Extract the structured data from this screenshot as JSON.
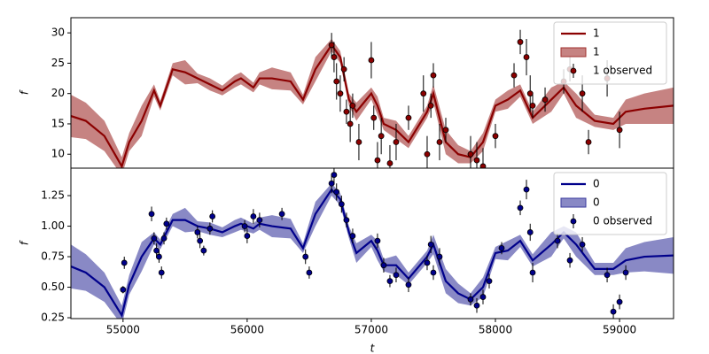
{
  "chart_data": [
    {
      "type": "line",
      "ylabel": "f",
      "legend": "upper right",
      "xlim": [
        54580,
        59435
      ],
      "ylim": [
        7.7,
        32.5
      ],
      "yticks": [
        10,
        15,
        20,
        25,
        30
      ],
      "x": [
        54580,
        54700,
        54850,
        54990,
        55050,
        55150,
        55250,
        55300,
        55400,
        55500,
        55600,
        55700,
        55800,
        55900,
        55950,
        56050,
        56100,
        56200,
        56350,
        56450,
        56550,
        56680,
        56750,
        56820,
        56880,
        57000,
        57050,
        57100,
        57200,
        57300,
        57450,
        57500,
        57600,
        57700,
        57800,
        57900,
        58000,
        58100,
        58200,
        58300,
        58450,
        58550,
        58650,
        58800,
        58950,
        59050,
        59200,
        59435
      ],
      "series": [
        {
          "name": "1",
          "color": "#8b0000",
          "values": [
            16.3,
            15.5,
            13,
            8,
            12,
            15.5,
            20.5,
            18,
            24,
            23.5,
            22.5,
            21.5,
            20.5,
            22,
            22.5,
            21,
            22.5,
            22.5,
            22,
            19,
            24,
            28,
            26,
            19,
            17,
            20,
            18,
            15,
            14,
            12,
            17,
            20,
            12,
            10,
            9.5,
            12,
            18,
            19,
            20.5,
            16,
            19,
            21,
            18,
            15.5,
            15,
            17,
            17.5,
            18
          ]
        }
      ],
      "band": {
        "name": "1",
        "color": "#a0312f",
        "errors": [
          3.5,
          3,
          2.5,
          1.5,
          1.5,
          2.5,
          1,
          0.8,
          1,
          2,
          0.8,
          1,
          0.8,
          1,
          1,
          0.8,
          1,
          1.8,
          1.5,
          0.8,
          2,
          1,
          1,
          1,
          1.5,
          1,
          1.5,
          1,
          1.5,
          1,
          1,
          1.5,
          2,
          1.5,
          1,
          1.5,
          1,
          1.5,
          1,
          1,
          2,
          1,
          2,
          1,
          1,
          2,
          2.5,
          3
        ]
      },
      "observed": {
        "name": "1 observed",
        "color": "#8b0000",
        "x": [
          56680,
          56700,
          56720,
          56750,
          56780,
          56800,
          56830,
          56850,
          56900,
          57000,
          57020,
          57050,
          57080,
          57150,
          57200,
          57300,
          57420,
          57450,
          57480,
          57500,
          57550,
          57600,
          57800,
          57850,
          57900,
          58000,
          58150,
          58200,
          58250,
          58280,
          58300,
          58400,
          58550,
          58600,
          58700,
          58750,
          58900,
          59000
        ],
        "values": [
          28,
          26,
          22,
          20,
          24,
          17,
          15,
          18,
          12,
          25.5,
          16,
          9,
          13,
          8.5,
          12,
          16,
          20,
          10,
          18,
          23,
          12,
          14,
          10,
          9,
          8,
          13,
          23,
          28.5,
          26,
          20,
          18,
          19,
          22,
          24,
          20,
          12,
          22.5,
          14
        ],
        "errors": [
          2,
          2.5,
          3,
          3,
          2,
          2,
          3,
          2,
          3,
          3,
          2,
          3,
          3,
          3,
          3,
          2,
          3,
          3,
          2,
          2,
          3,
          2,
          3,
          3,
          3,
          2,
          2,
          2,
          3,
          3,
          2,
          2,
          2,
          2,
          3,
          2,
          3,
          3
        ]
      }
    },
    {
      "type": "line",
      "ylabel": "f",
      "xlabel": "t",
      "legend": "upper right",
      "xlim": [
        54580,
        59435
      ],
      "ylim": [
        0.243,
        1.475
      ],
      "xticks": [
        55000,
        56000,
        57000,
        58000,
        59000
      ],
      "yticks": [
        0.25,
        {
          "value": 0.5,
          "label": "0.50"
        },
        0.75,
        {
          "value": 1,
          "label": "1.00"
        },
        1.25
      ],
      "x": [
        54580,
        54700,
        54850,
        54990,
        55050,
        55150,
        55250,
        55300,
        55400,
        55500,
        55600,
        55700,
        55800,
        55900,
        55950,
        56050,
        56100,
        56200,
        56350,
        56450,
        56550,
        56680,
        56750,
        56820,
        56880,
        57000,
        57050,
        57100,
        57200,
        57300,
        57450,
        57500,
        57600,
        57700,
        57800,
        57900,
        58000,
        58100,
        58200,
        58300,
        58450,
        58550,
        58650,
        58800,
        58950,
        59050,
        59200,
        59435
      ],
      "series": [
        {
          "name": "0",
          "color": "#00008b",
          "values": [
            0.67,
            0.62,
            0.5,
            0.27,
            0.52,
            0.75,
            0.9,
            0.85,
            1.05,
            1.05,
            1,
            0.98,
            0.95,
            1,
            1.02,
            0.98,
            1.02,
            1,
            0.98,
            0.82,
            1.1,
            1.3,
            1.22,
            0.95,
            0.78,
            0.88,
            0.8,
            0.68,
            0.68,
            0.57,
            0.75,
            0.85,
            0.55,
            0.45,
            0.4,
            0.5,
            0.78,
            0.8,
            0.88,
            0.72,
            0.85,
            0.95,
            0.85,
            0.65,
            0.65,
            0.72,
            0.75,
            0.76
          ]
        }
      ],
      "band": {
        "name": "0",
        "color": "#3a3a9e",
        "errors": [
          0.18,
          0.15,
          0.12,
          0.08,
          0.08,
          0.12,
          0.05,
          0.04,
          0.05,
          0.1,
          0.04,
          0.05,
          0.04,
          0.05,
          0.05,
          0.04,
          0.05,
          0.09,
          0.08,
          0.04,
          0.1,
          0.05,
          0.05,
          0.05,
          0.08,
          0.05,
          0.08,
          0.05,
          0.08,
          0.05,
          0.05,
          0.08,
          0.1,
          0.08,
          0.05,
          0.08,
          0.05,
          0.08,
          0.05,
          0.05,
          0.1,
          0.05,
          0.1,
          0.05,
          0.05,
          0.1,
          0.12,
          0.15
        ]
      },
      "observed": {
        "name": "0 observed",
        "color": "#00008b",
        "x": [
          55000,
          55010,
          55230,
          55250,
          55270,
          55290,
          55310,
          55330,
          55350,
          55600,
          55620,
          55650,
          55700,
          55720,
          55980,
          56000,
          56050,
          56100,
          56280,
          56470,
          56500,
          56680,
          56700,
          56720,
          56760,
          56800,
          56850,
          57050,
          57100,
          57150,
          57200,
          57300,
          57450,
          57480,
          57500,
          57550,
          57800,
          57850,
          57900,
          57950,
          58050,
          58200,
          58250,
          58280,
          58300,
          58500,
          58600,
          58700,
          58900,
          58950,
          59000,
          59050
        ],
        "values": [
          0.48,
          0.7,
          1.1,
          0.9,
          0.8,
          0.75,
          0.62,
          0.9,
          1.02,
          0.95,
          0.88,
          0.8,
          0.98,
          1.08,
          1,
          0.92,
          1.08,
          1.05,
          1.1,
          0.75,
          0.62,
          1.35,
          1.42,
          1.28,
          1.18,
          1.05,
          0.92,
          0.88,
          0.68,
          0.55,
          0.6,
          0.52,
          0.7,
          0.85,
          0.62,
          0.75,
          0.4,
          0.35,
          0.42,
          0.55,
          0.82,
          1.15,
          1.3,
          0.95,
          0.62,
          0.88,
          0.72,
          0.85,
          0.6,
          0.3,
          0.38,
          0.62
        ],
        "errors": [
          0.03,
          0.05,
          0.06,
          0.05,
          0.06,
          0.05,
          0.05,
          0.05,
          0.05,
          0.05,
          0.06,
          0.04,
          0.05,
          0.05,
          0.05,
          0.06,
          0.06,
          0.06,
          0.05,
          0.06,
          0.05,
          0.08,
          0.08,
          0.07,
          0.07,
          0.06,
          0.06,
          0.06,
          0.06,
          0.05,
          0.06,
          0.06,
          0.06,
          0.07,
          0.06,
          0.07,
          0.05,
          0.06,
          0.06,
          0.06,
          0.05,
          0.06,
          0.08,
          0.07,
          0.08,
          0.06,
          0.06,
          0.06,
          0.06,
          0.06,
          0.06,
          0.06
        ]
      }
    }
  ]
}
